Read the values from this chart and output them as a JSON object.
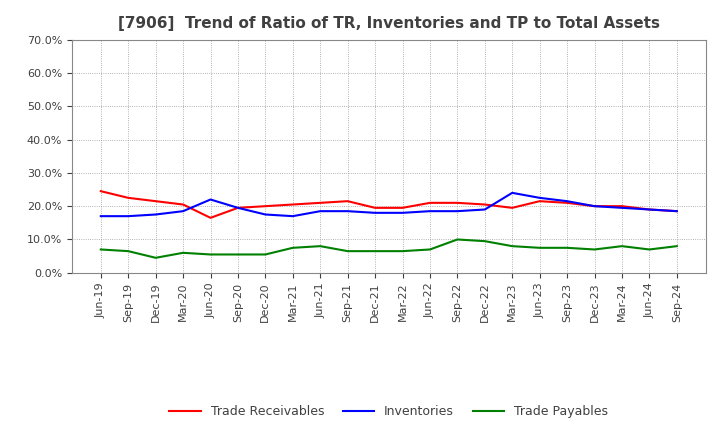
{
  "title": "[7906]  Trend of Ratio of TR, Inventories and TP to Total Assets",
  "x_labels": [
    "Jun-19",
    "Sep-19",
    "Dec-19",
    "Mar-20",
    "Jun-20",
    "Sep-20",
    "Dec-20",
    "Mar-21",
    "Jun-21",
    "Sep-21",
    "Dec-21",
    "Mar-22",
    "Jun-22",
    "Sep-22",
    "Dec-22",
    "Mar-23",
    "Jun-23",
    "Sep-23",
    "Dec-23",
    "Mar-24",
    "Jun-24",
    "Sep-24"
  ],
  "trade_receivables": [
    0.245,
    0.225,
    0.215,
    0.205,
    0.165,
    0.195,
    0.2,
    0.205,
    0.21,
    0.215,
    0.195,
    0.195,
    0.21,
    0.21,
    0.205,
    0.195,
    0.215,
    0.21,
    0.2,
    0.2,
    0.19,
    0.185
  ],
  "inventories": [
    0.17,
    0.17,
    0.175,
    0.185,
    0.22,
    0.195,
    0.175,
    0.17,
    0.185,
    0.185,
    0.18,
    0.18,
    0.185,
    0.185,
    0.19,
    0.24,
    0.225,
    0.215,
    0.2,
    0.195,
    0.19,
    0.185
  ],
  "trade_payables": [
    0.07,
    0.065,
    0.045,
    0.06,
    0.055,
    0.055,
    0.055,
    0.075,
    0.08,
    0.065,
    0.065,
    0.065,
    0.07,
    0.1,
    0.095,
    0.08,
    0.075,
    0.075,
    0.07,
    0.08,
    0.07,
    0.08
  ],
  "tr_color": "#ff0000",
  "inv_color": "#0000ff",
  "tp_color": "#008000",
  "ylim": [
    0.0,
    0.7
  ],
  "yticks": [
    0.0,
    0.1,
    0.2,
    0.3,
    0.4,
    0.5,
    0.6,
    0.7
  ],
  "bg_color": "#ffffff",
  "grid_color": "#999999",
  "title_color": "#404040",
  "title_fontsize": 11,
  "tick_fontsize": 8,
  "line_width": 1.5
}
